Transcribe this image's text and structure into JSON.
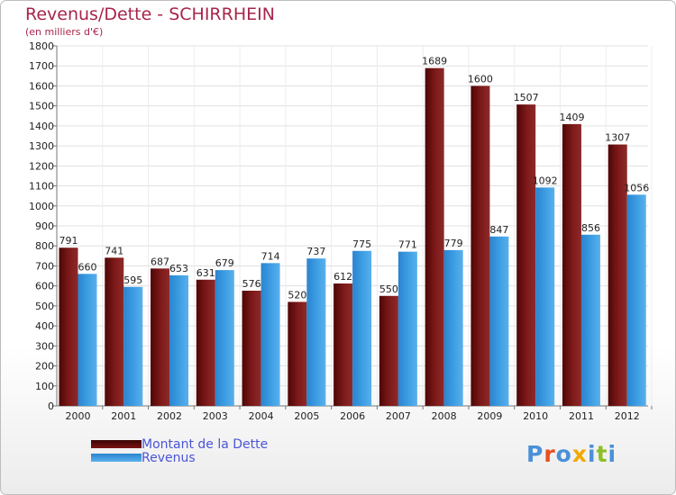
{
  "title": "Revenus/Dette - SCHIRRHEIN",
  "subtitle": "(en milliers d'€)",
  "logo": {
    "text": "Proxiti",
    "colors": [
      "#4a90d9",
      "#e8501e",
      "#4a90d9",
      "#f2a900",
      "#4a90d9",
      "#8cbf26",
      "#4a90d9"
    ]
  },
  "legend": [
    {
      "label": "Montant de la Dette",
      "color": "#7a1212"
    },
    {
      "label": "Revenus",
      "color": "#3a9ae0"
    }
  ],
  "chart_data": {
    "type": "bar",
    "categories": [
      "2000",
      "2001",
      "2002",
      "2003",
      "2004",
      "2005",
      "2006",
      "2007",
      "2008",
      "2009",
      "2010",
      "2011",
      "2012"
    ],
    "series": [
      {
        "name": "Montant de la Dette",
        "color": "#7a1212",
        "values": [
          791,
          741,
          687,
          631,
          576,
          520,
          612,
          550,
          1689,
          1600,
          1507,
          1409,
          1307
        ]
      },
      {
        "name": "Revenus",
        "color": "#3a9ae0",
        "values": [
          660,
          595,
          653,
          679,
          714,
          737,
          775,
          771,
          779,
          847,
          1092,
          856,
          1056
        ]
      }
    ],
    "ylim": [
      0,
      1800
    ],
    "yticks": [
      0,
      100,
      200,
      300,
      400,
      500,
      600,
      700,
      800,
      900,
      1000,
      1100,
      1200,
      1300,
      1400,
      1500,
      1600,
      1700,
      1800
    ],
    "grid": true,
    "legend_position": "bottom-left"
  }
}
